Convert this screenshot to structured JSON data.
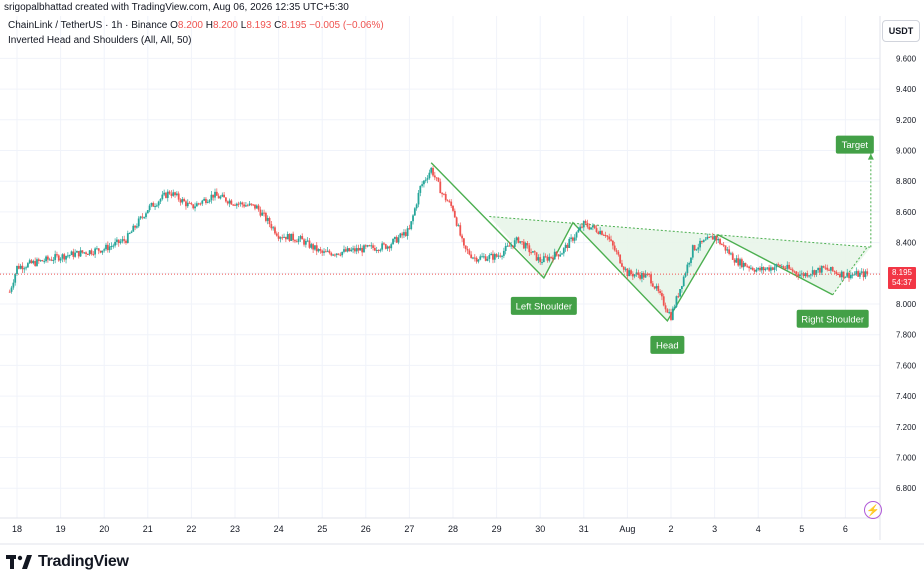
{
  "header": {
    "author_line": "srigopalbhattad created with TradingView.com, Aug 06, 2026 12:35 UTC+5:30",
    "symbol": "ChainLink / TetherUS · 1h · Binance",
    "open_label": "O",
    "open": "8.200",
    "high_label": "H",
    "high": "8.200",
    "low_label": "L",
    "low": "8.193",
    "close_label": "C",
    "close": "8.195",
    "change": "−0.005 (−0.06%)",
    "indicator": "Inverted Head and Shoulders (All, All, 50)"
  },
  "price_axis": {
    "currency": "USDT",
    "ticks": [
      "9.600",
      "9.400",
      "9.200",
      "9.000",
      "8.800",
      "8.600",
      "8.400",
      "8.200",
      "8.000",
      "7.800",
      "7.600",
      "7.400",
      "7.200",
      "7.000",
      "6.800"
    ],
    "last_price": "8.195",
    "countdown": "54:37"
  },
  "time_axis": {
    "ticks": [
      "18",
      "19",
      "20",
      "21",
      "22",
      "23",
      "24",
      "25",
      "26",
      "27",
      "28",
      "29",
      "30",
      "31",
      "Aug",
      "2",
      "3",
      "4",
      "5",
      "6"
    ]
  },
  "annotations": {
    "left_shoulder": "Left Shoulder",
    "head": "Head",
    "right_shoulder": "Right Shoulder",
    "target": "Target"
  },
  "logo": {
    "text": "TradingView"
  },
  "colors": {
    "up": "#26a69a",
    "down": "#ef5350",
    "pattern": "#4caf50",
    "pattern_fill": "#e8f5e9",
    "label_bg": "#43a047",
    "price_line": "#ef5350",
    "grid": "#f0f3fa"
  },
  "chart_data": {
    "type": "candlestick",
    "interval": "1h",
    "ylim": [
      6.7,
      9.78
    ],
    "grid": true,
    "price_path": [
      {
        "x": "Jul 17 20:00",
        "y": 8.08
      },
      {
        "x": "Jul 18 00:00",
        "y": 8.24
      },
      {
        "x": "Jul 19 00:00",
        "y": 8.31
      },
      {
        "x": "Jul 20 00:00",
        "y": 8.36
      },
      {
        "x": "Jul 20 12:00",
        "y": 8.42
      },
      {
        "x": "Jul 21 00:00",
        "y": 8.62
      },
      {
        "x": "Jul 21 12:00",
        "y": 8.73
      },
      {
        "x": "Jul 22 00:00",
        "y": 8.63
      },
      {
        "x": "Jul 22 12:00",
        "y": 8.71
      },
      {
        "x": "Jul 23 00:00",
        "y": 8.66
      },
      {
        "x": "Jul 23 12:00",
        "y": 8.63
      },
      {
        "x": "Jul 24 00:00",
        "y": 8.45
      },
      {
        "x": "Jul 24 12:00",
        "y": 8.42
      },
      {
        "x": "Jul 25 00:00",
        "y": 8.33
      },
      {
        "x": "Jul 25 12:00",
        "y": 8.34
      },
      {
        "x": "Jul 26 00:00",
        "y": 8.36
      },
      {
        "x": "Jul 26 12:00",
        "y": 8.38
      },
      {
        "x": "Jul 27 00:00",
        "y": 8.48
      },
      {
        "x": "Jul 27 06:00",
        "y": 8.76
      },
      {
        "x": "Jul 27 12:00",
        "y": 8.88
      },
      {
        "x": "Jul 27 18:00",
        "y": 8.72
      },
      {
        "x": "Jul 28 00:00",
        "y": 8.62
      },
      {
        "x": "Jul 28 06:00",
        "y": 8.36
      },
      {
        "x": "Jul 28 12:00",
        "y": 8.3
      },
      {
        "x": "Jul 29 00:00",
        "y": 8.31
      },
      {
        "x": "Jul 29 12:00",
        "y": 8.42
      },
      {
        "x": "Jul 30 00:00",
        "y": 8.28
      },
      {
        "x": "Jul 30 12:00",
        "y": 8.34
      },
      {
        "x": "Jul 31 00:00",
        "y": 8.52
      },
      {
        "x": "Jul 31 12:00",
        "y": 8.46
      },
      {
        "x": "Aug 01 00:00",
        "y": 8.2
      },
      {
        "x": "Aug 01 12:00",
        "y": 8.18
      },
      {
        "x": "Aug 02 00:00",
        "y": 7.92
      },
      {
        "x": "Aug 02 12:00",
        "y": 8.36
      },
      {
        "x": "Aug 03 00:00",
        "y": 8.44
      },
      {
        "x": "Aug 03 12:00",
        "y": 8.28
      },
      {
        "x": "Aug 04 00:00",
        "y": 8.22
      },
      {
        "x": "Aug 04 12:00",
        "y": 8.25
      },
      {
        "x": "Aug 05 00:00",
        "y": 8.19
      },
      {
        "x": "Aug 05 12:00",
        "y": 8.23
      },
      {
        "x": "Aug 06 00:00",
        "y": 8.19
      },
      {
        "x": "Aug 06 12:00",
        "y": 8.195
      }
    ],
    "pattern": {
      "points": [
        {
          "x": "Jul 27 12:00",
          "y": 8.92
        },
        {
          "x": "Jul 30 02:00",
          "y": 8.17
        },
        {
          "x": "Jul 30 18:00",
          "y": 8.53
        },
        {
          "x": "Aug 01 22:00",
          "y": 7.89
        },
        {
          "x": "Aug 03 02:00",
          "y": 8.45
        },
        {
          "x": "Aug 05 17:00",
          "y": 8.06
        },
        {
          "x": "Aug 06 12:00",
          "y": 8.37
        }
      ],
      "neckline": [
        {
          "x": "Jul 28 20:00",
          "y": 8.57
        },
        {
          "x": "Aug 06 14:00",
          "y": 8.37
        }
      ],
      "target": {
        "x": "Aug 06 14:00",
        "y": 8.98
      }
    },
    "last_price": 8.195
  }
}
